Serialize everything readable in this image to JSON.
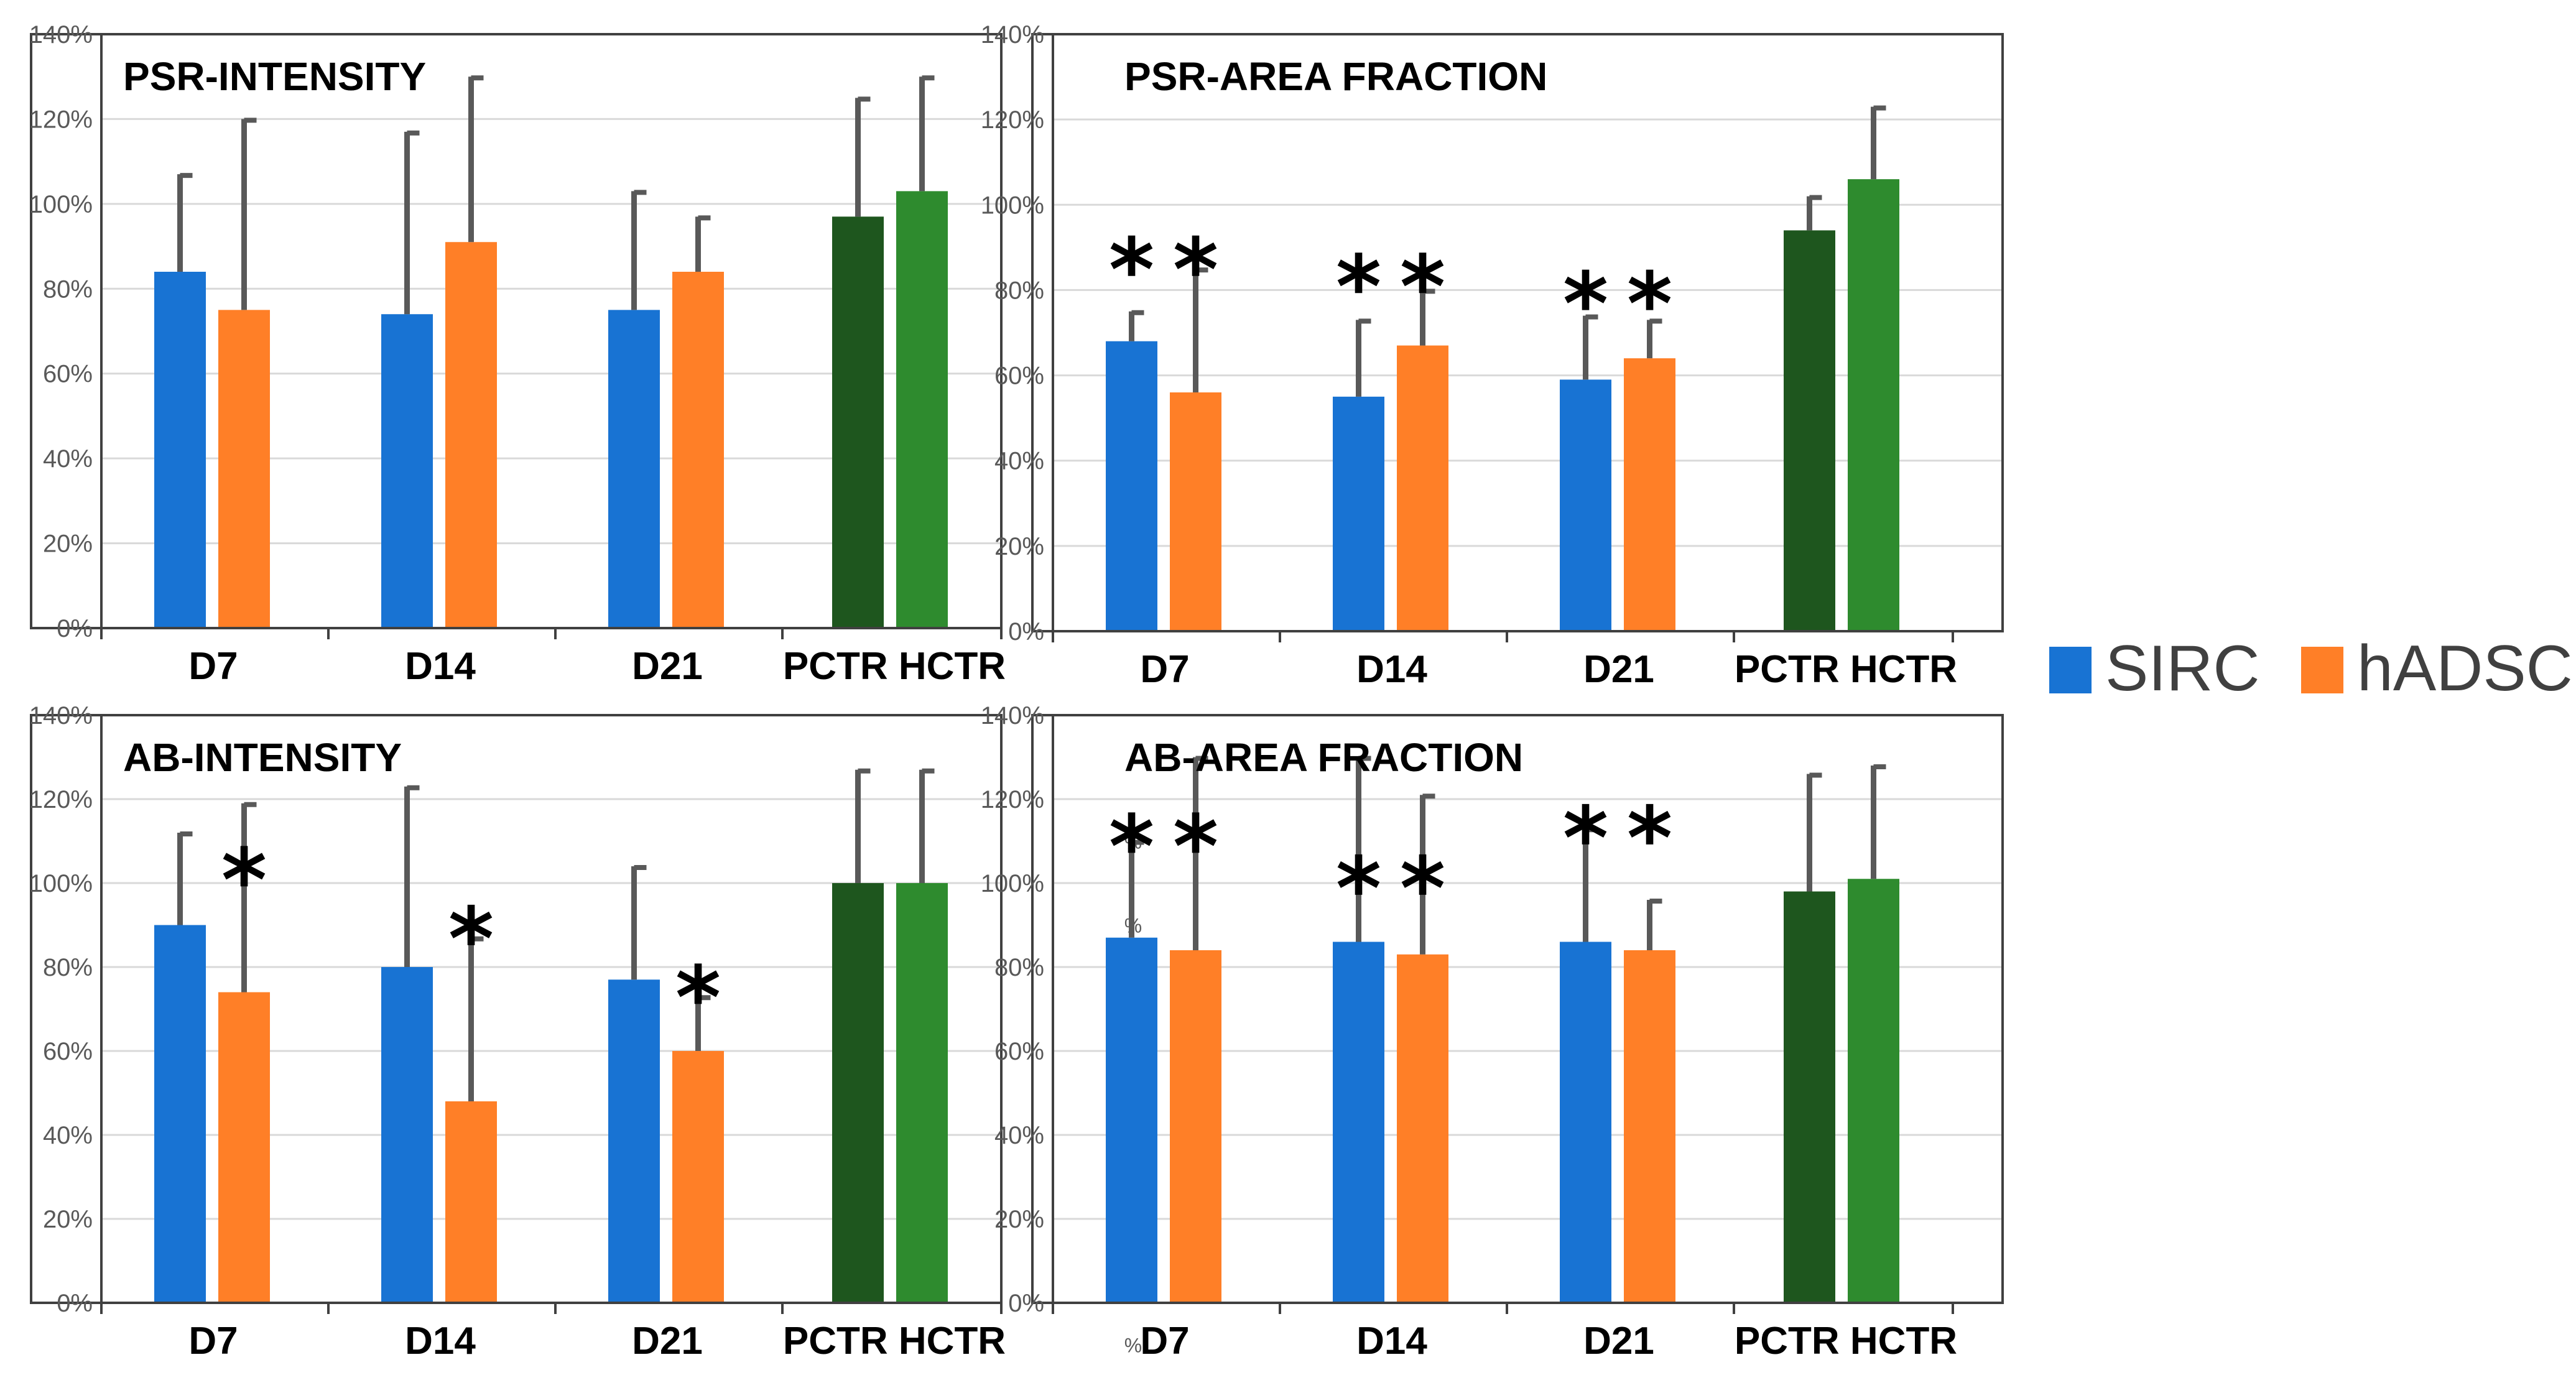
{
  "legend": [
    {
      "name": "SIRC",
      "color": "#1873D3"
    },
    {
      "name": "hADSC",
      "color": "#FF7F27"
    }
  ],
  "colors": {
    "sirc": "#1873D3",
    "hadsc": "#FF7F27",
    "pctr": "#1E561E",
    "hctr": "#2E8B2E",
    "error": "#595959",
    "grid": "#D9D9D9",
    "frame": "#404040"
  },
  "chart_data": [
    {
      "type": "bar",
      "title": "PSR-INTENSITY",
      "categories": [
        "D7",
        "D14",
        "D21",
        "PCTR HCTR"
      ],
      "yticks": [
        "0%",
        "20%",
        "40%",
        "60%",
        "80%",
        "100%",
        "120%",
        "140%"
      ],
      "ylim": [
        0,
        140
      ],
      "bars": [
        {
          "group": "D7",
          "series": "SIRC",
          "value": 84,
          "error": 107
        },
        {
          "group": "D7",
          "series": "hADSC",
          "value": 75,
          "error": 120
        },
        {
          "group": "D14",
          "series": "SIRC",
          "value": 74,
          "error": 117
        },
        {
          "group": "D14",
          "series": "hADSC",
          "value": 91,
          "error": 130
        },
        {
          "group": "D21",
          "series": "SIRC",
          "value": 75,
          "error": 103
        },
        {
          "group": "D21",
          "series": "hADSC",
          "value": 84,
          "error": 97
        },
        {
          "group": "PCTR HCTR",
          "series": "PCTR",
          "value": 97,
          "error": 125
        },
        {
          "group": "PCTR HCTR",
          "series": "HCTR",
          "value": 103,
          "error": 130
        }
      ],
      "annotations": []
    },
    {
      "type": "bar",
      "title": "PSR-AREA FRACTION",
      "categories": [
        "D7",
        "D14",
        "D21",
        "PCTR HCTR"
      ],
      "yticks": [
        "0%",
        "20%",
        "40%",
        "60%",
        "80%",
        "100%",
        "120%",
        "140%"
      ],
      "ylim": [
        0,
        140
      ],
      "bars": [
        {
          "group": "D7",
          "series": "SIRC",
          "value": 68,
          "error": 75
        },
        {
          "group": "D7",
          "series": "hADSC",
          "value": 56,
          "error": 85
        },
        {
          "group": "D14",
          "series": "SIRC",
          "value": 55,
          "error": 73
        },
        {
          "group": "D14",
          "series": "hADSC",
          "value": 67,
          "error": 80
        },
        {
          "group": "D21",
          "series": "SIRC",
          "value": 59,
          "error": 74
        },
        {
          "group": "D21",
          "series": "hADSC",
          "value": 64,
          "error": 73
        },
        {
          "group": "PCTR HCTR",
          "series": "PCTR",
          "value": 94,
          "error": 102
        },
        {
          "group": "PCTR HCTR",
          "series": "HCTR",
          "value": 106,
          "error": 123
        }
      ],
      "annotations": [
        {
          "text": "*",
          "group": "D7",
          "series": "SIRC",
          "at": 89
        },
        {
          "text": "*",
          "group": "D7",
          "series": "hADSC",
          "at": 89
        },
        {
          "text": "*",
          "group": "D14",
          "series": "SIRC",
          "at": 85
        },
        {
          "text": "*",
          "group": "D14",
          "series": "hADSC",
          "at": 85
        },
        {
          "text": "*",
          "group": "D21",
          "series": "SIRC",
          "at": 81
        },
        {
          "text": "*",
          "group": "D21",
          "series": "hADSC",
          "at": 81
        }
      ]
    },
    {
      "type": "bar",
      "title": "AB-INTENSITY",
      "categories": [
        "D7",
        "D14",
        "D21",
        "PCTR HCTR"
      ],
      "yticks": [
        "0%",
        "20%",
        "40%",
        "60%",
        "80%",
        "100%",
        "120%",
        "140%"
      ],
      "ylim": [
        0,
        140
      ],
      "bars": [
        {
          "group": "D7",
          "series": "SIRC",
          "value": 90,
          "error": 112
        },
        {
          "group": "D7",
          "series": "hADSC",
          "value": 74,
          "error": 119
        },
        {
          "group": "D14",
          "series": "SIRC",
          "value": 80,
          "error": 123
        },
        {
          "group": "D14",
          "series": "hADSC",
          "value": 48,
          "error": 87
        },
        {
          "group": "D21",
          "series": "SIRC",
          "value": 77,
          "error": 104
        },
        {
          "group": "D21",
          "series": "hADSC",
          "value": 60,
          "error": 73
        },
        {
          "group": "PCTR HCTR",
          "series": "PCTR",
          "value": 100,
          "error": 127
        },
        {
          "group": "PCTR HCTR",
          "series": "HCTR",
          "value": 100,
          "error": 127
        }
      ],
      "annotations": [
        {
          "text": "*",
          "group": "D7",
          "series": "hADSC",
          "at": 105
        },
        {
          "text": "*",
          "group": "D14",
          "series": "hADSC",
          "at": 91
        },
        {
          "text": "*",
          "group": "D21",
          "series": "hADSC",
          "at": 77
        }
      ]
    },
    {
      "type": "bar",
      "title": "AB-AREA FRACTION",
      "categories": [
        "D7",
        "D14",
        "D21",
        "PCTR HCTR"
      ],
      "yticks": [
        "0%",
        "20%",
        "40%",
        "60%",
        "80%",
        "100%",
        "120%",
        "140%"
      ],
      "ylim": [
        0,
        140
      ],
      "left_marks": [
        "%",
        "%",
        "%",
        "%",
        "%",
        "%",
        "%"
      ],
      "bars": [
        {
          "group": "D7",
          "series": "SIRC",
          "value": 87,
          "error": 110
        },
        {
          "group": "D7",
          "series": "hADSC",
          "value": 84,
          "error": 130
        },
        {
          "group": "D14",
          "series": "SIRC",
          "value": 86,
          "error": 130
        },
        {
          "group": "D14",
          "series": "hADSC",
          "value": 83,
          "error": 121
        },
        {
          "group": "D21",
          "series": "SIRC",
          "value": 86,
          "error": 113
        },
        {
          "group": "D21",
          "series": "hADSC",
          "value": 84,
          "error": 96
        },
        {
          "group": "PCTR HCTR",
          "series": "PCTR",
          "value": 98,
          "error": 126
        },
        {
          "group": "PCTR HCTR",
          "series": "HCTR",
          "value": 101,
          "error": 128
        }
      ],
      "annotations": [
        {
          "text": "*",
          "group": "D7",
          "series": "SIRC",
          "at": 113
        },
        {
          "text": "*",
          "group": "D7",
          "series": "hADSC",
          "at": 113
        },
        {
          "text": "*",
          "group": "D14",
          "series": "SIRC",
          "at": 103
        },
        {
          "text": "*",
          "group": "D14",
          "series": "hADSC",
          "at": 103
        },
        {
          "text": "*",
          "group": "D21",
          "series": "SIRC",
          "at": 115
        },
        {
          "text": "*",
          "group": "D21",
          "series": "hADSC",
          "at": 115
        }
      ]
    }
  ]
}
